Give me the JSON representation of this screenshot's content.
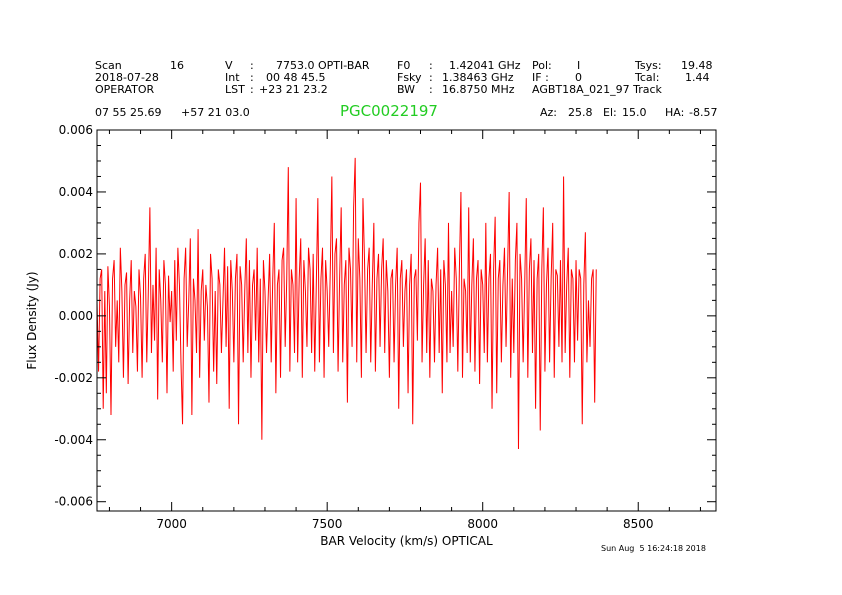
{
  "header": {
    "scan_label": "Scan",
    "scan_value": "16",
    "date": "2018-07-28",
    "operator": "OPERATOR",
    "v_label": "V",
    "v_value": "7753.0 OPTI-BAR",
    "int_label": "Int",
    "int_value": "00 48 45.5",
    "lst_label": "LST",
    "lst_value": "+23 21 23.2",
    "f0_label": "F0",
    "f0_value": "1.42041 GHz",
    "fsky_label": "Fsky",
    "fsky_value": "1.38463 GHz",
    "bw_label": "BW",
    "bw_value": "16.8750 MHz",
    "pol_label": "Pol:",
    "pol_value": "I",
    "if_label": "IF :",
    "if_value": "0",
    "project": "AGBT18A_021_97 Track",
    "tsys_label": "Tsys:",
    "tsys_value": "19.48",
    "tcal_label": "Tcal:",
    "tcal_value": "1.44",
    "ra": "07 55 25.69",
    "dec": "+57 21 03.0",
    "source": "PGC0022197",
    "az_label": "Az:",
    "az_value": "25.8",
    "el_label": "El:",
    "el_value": "15.0",
    "ha_label": "HA:",
    "ha_value": "-8.57",
    "timestamp": "Sun Aug  5 16:24:18 2018"
  },
  "colors": {
    "trace": "#ff0000",
    "source": "#22cc22",
    "axes": "#000000"
  },
  "chart_data": {
    "type": "line",
    "xlabel": "BAR Velocity (km/s) OPTICAL",
    "ylabel": "Flux Density (Jy)",
    "xlim": [
      6760,
      8750
    ],
    "ylim": [
      -0.0063,
      0.006
    ],
    "xticks": [
      7000,
      7500,
      8000,
      8500
    ],
    "xtick_labels": [
      "7000",
      "7500",
      "8000",
      "8500"
    ],
    "yticks": [
      -0.006,
      -0.004,
      -0.002,
      0.0,
      0.002,
      0.004,
      0.006
    ],
    "ytick_labels": [
      "-0.006",
      "-0.004",
      "-0.002",
      "0.000",
      "0.002",
      "0.004",
      "0.006"
    ],
    "series": [
      {
        "x_start": 6760,
        "x_step": 5,
        "y": [
          0.0005,
          -0.0018,
          0.0012,
          0.0015,
          -0.003,
          0.0008,
          -0.0025,
          0.0016,
          0.0003,
          -0.0032,
          0.0012,
          0.0018,
          -0.001,
          0.0005,
          -0.0015,
          0.0022,
          0.0008,
          -0.002,
          0.001,
          0.0014,
          -0.0022,
          0.0005,
          0.0018,
          -0.0012,
          0.0008,
          0.0003,
          -0.0018,
          0.0015,
          0.0006,
          -0.002,
          0.0012,
          0.002,
          -0.0015,
          0.0008,
          0.0035,
          -0.0012,
          0.001,
          -0.0008,
          0.0022,
          -0.0027,
          0.0015,
          0.0005,
          -0.0015,
          0.0018,
          0.001,
          -0.0025,
          0.0013,
          -0.0002,
          0.0008,
          -0.0018,
          0.0018,
          -0.0008,
          0.0022,
          0.001,
          -0.0015,
          -0.0035,
          0.0012,
          0.0022,
          -0.001,
          0.0005,
          0.0025,
          -0.0032,
          0.0012,
          0.0005,
          -0.0012,
          0.0028,
          -0.002,
          0.0008,
          0.0015,
          -0.0008,
          0.001,
          0.0003,
          -0.0028,
          0.002,
          0.0012,
          -0.0018,
          0.0008,
          -0.0022,
          0.0015,
          0.001,
          -0.0012,
          0.0005,
          0.0022,
          -0.001,
          0.0016,
          -0.003,
          0.0018,
          0.0008,
          -0.0015,
          0.0012,
          0.002,
          -0.0035,
          0.0016,
          0.001,
          -0.0015,
          0.0008,
          0.0025,
          -0.0012,
          0.0018,
          -0.002,
          0.001,
          0.0015,
          -0.0008,
          0.0022,
          -0.0015,
          0.0012,
          -0.004,
          0.0018,
          0.0008,
          -0.0012,
          0.0005,
          0.002,
          -0.0015,
          0.0012,
          0.003,
          -0.0025,
          0.001,
          0.0015,
          -0.002,
          0.0018,
          0.0022,
          -0.001,
          0.0012,
          0.0048,
          -0.0018,
          0.0015,
          0.001,
          -0.0012,
          0.0038,
          -0.0015,
          0.0012,
          0.0025,
          -0.002,
          0.0018,
          0.0008,
          -0.001,
          0.0022,
          0.0015,
          -0.0012,
          0.002,
          -0.0018,
          0.001,
          0.0038,
          -0.0015,
          0.0012,
          0.0022,
          -0.002,
          0.0018,
          0.0008,
          -0.001,
          0.0015,
          0.0045,
          -0.0012,
          0.002,
          0.0025,
          -0.0018,
          0.0012,
          0.0035,
          -0.0015,
          0.001,
          0.0018,
          -0.0028,
          0.0022,
          0.0015,
          -0.001,
          0.0035,
          0.0051,
          -0.0015,
          0.0025,
          0.0012,
          -0.002,
          0.0038,
          0.0018,
          -0.0012,
          0.0015,
          0.0022,
          -0.0015,
          0.001,
          0.003,
          -0.0018,
          0.0012,
          0.002,
          -0.001,
          0.0015,
          0.0025,
          -0.0012,
          0.0018,
          0.0008,
          -0.002,
          0.0012,
          0.0015,
          -0.0015,
          0.001,
          0.0022,
          -0.003,
          0.0012,
          0.0018,
          -0.001,
          0.0008,
          0.0015,
          -0.0025,
          0.001,
          0.002,
          -0.0035,
          0.0012,
          0.0015,
          -0.0008,
          0.003,
          0.0043,
          -0.0015,
          0.001,
          0.0025,
          -0.0012,
          0.0018,
          -0.002,
          0.0012,
          0.0008,
          -0.0015,
          0.001,
          0.0022,
          -0.0012,
          0.0015,
          -0.0025,
          0.0018,
          0.001,
          -0.0015,
          0.003,
          -0.0012,
          0.0008,
          -0.001,
          0.0022,
          0.0012,
          -0.0018,
          0.0015,
          0.004,
          -0.002,
          0.0012,
          0.0008,
          -0.0012,
          0.0035,
          -0.0015,
          0.001,
          0.0025,
          -0.0018,
          0.0012,
          0.0018,
          -0.0022,
          0.0015,
          0.001,
          -0.0012,
          0.003,
          -0.0015,
          0.0012,
          0.002,
          -0.003,
          0.0015,
          0.0032,
          -0.0025,
          0.0012,
          0.0018,
          -0.0015,
          0.001,
          0.0022,
          -0.001,
          0.0015,
          0.004,
          -0.002,
          0.0012,
          -0.0012,
          0.0018,
          0.003,
          -0.0043,
          0.002,
          0.0012,
          -0.0015,
          0.001,
          0.0038,
          -0.002,
          0.0015,
          0.0025,
          -0.0012,
          0.0018,
          -0.003,
          0.0012,
          0.002,
          -0.0037,
          0.0015,
          0.0035,
          -0.0018,
          0.001,
          0.0022,
          -0.0015,
          0.0012,
          0.003,
          -0.002,
          0.0015,
          0.0013,
          -0.001,
          0.0018,
          -0.0015,
          0.0045,
          -0.0012,
          0.001,
          0.0022,
          -0.002,
          0.0015,
          0.0012,
          -0.0015,
          0.0018,
          -0.0008,
          0.0015,
          0.0012,
          -0.0035,
          0.001,
          0.0027,
          -0.0015,
          0.0005,
          -0.001,
          0.0012,
          0.0015,
          -0.0028,
          0.0015
        ]
      }
    ]
  }
}
